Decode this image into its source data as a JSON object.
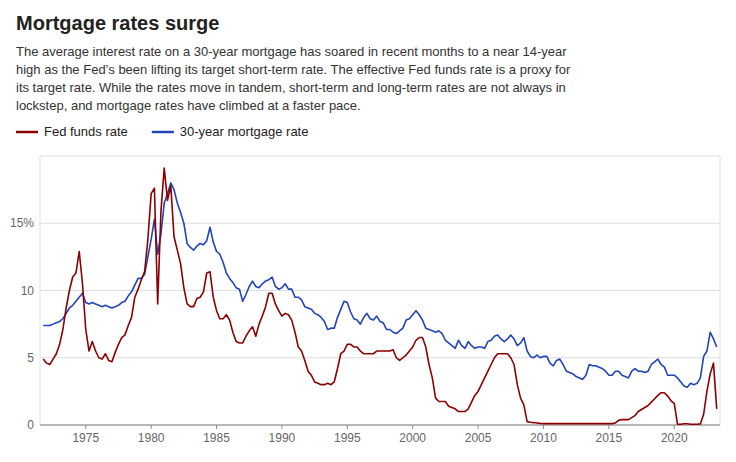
{
  "chart_data": {
    "type": "line",
    "title": "Mortgage rates surge",
    "subtitle": [
      "The average interest rate on a 30-year mortgage has soared in recent months to a near 14-year",
      "high as the Fed’s been lifting its target short-term rate. The effective Fed funds rate is a proxy for",
      "its target rate. While the rates move in tandem, short-term and long-term rates are not always in",
      "lockstep, and mortgage rates have climbed at a faster pace."
    ],
    "x": [
      1971.75,
      1972,
      1972.25,
      1972.5,
      1972.75,
      1973,
      1973.25,
      1973.5,
      1973.75,
      1974,
      1974.25,
      1974.5,
      1974.75,
      1975,
      1975.25,
      1975.5,
      1975.75,
      1976,
      1976.25,
      1976.5,
      1976.75,
      1977,
      1977.25,
      1977.5,
      1977.75,
      1978,
      1978.25,
      1978.5,
      1978.75,
      1979,
      1979.25,
      1979.5,
      1979.75,
      1980,
      1980.25,
      1980.5,
      1980.75,
      1981,
      1981.25,
      1981.5,
      1981.75,
      1982,
      1982.25,
      1982.5,
      1982.75,
      1983,
      1983.25,
      1983.5,
      1983.75,
      1984,
      1984.25,
      1984.5,
      1984.75,
      1985,
      1985.25,
      1985.5,
      1985.75,
      1986,
      1986.25,
      1986.5,
      1986.75,
      1987,
      1987.25,
      1987.5,
      1987.75,
      1988,
      1988.25,
      1988.5,
      1988.75,
      1989,
      1989.25,
      1989.5,
      1989.75,
      1990,
      1990.25,
      1990.5,
      1990.75,
      1991,
      1991.25,
      1991.5,
      1991.75,
      1992,
      1992.25,
      1992.5,
      1992.75,
      1993,
      1993.25,
      1993.5,
      1993.75,
      1994,
      1994.25,
      1994.5,
      1994.75,
      1995,
      1995.25,
      1995.5,
      1995.75,
      1996,
      1996.25,
      1996.5,
      1996.75,
      1997,
      1997.25,
      1997.5,
      1997.75,
      1998,
      1998.25,
      1998.5,
      1998.75,
      1999,
      1999.25,
      1999.5,
      1999.75,
      2000,
      2000.25,
      2000.5,
      2000.75,
      2001,
      2001.25,
      2001.5,
      2001.75,
      2002,
      2002.25,
      2002.5,
      2002.75,
      2003,
      2003.25,
      2003.5,
      2003.75,
      2004,
      2004.25,
      2004.5,
      2004.75,
      2005,
      2005.25,
      2005.5,
      2005.75,
      2006,
      2006.25,
      2006.5,
      2006.75,
      2007,
      2007.25,
      2007.5,
      2007.75,
      2008,
      2008.25,
      2008.5,
      2008.75,
      2009,
      2009.25,
      2009.5,
      2009.75,
      2010,
      2010.25,
      2010.5,
      2010.75,
      2011,
      2011.25,
      2011.5,
      2011.75,
      2012,
      2012.25,
      2012.5,
      2012.75,
      2013,
      2013.25,
      2013.5,
      2013.75,
      2014,
      2014.25,
      2014.5,
      2014.75,
      2015,
      2015.25,
      2015.5,
      2015.75,
      2016,
      2016.25,
      2016.5,
      2016.75,
      2017,
      2017.25,
      2017.5,
      2017.75,
      2018,
      2018.25,
      2018.5,
      2018.75,
      2019,
      2019.25,
      2019.5,
      2019.75,
      2020,
      2020.25,
      2020.5,
      2020.75,
      2021,
      2021.25,
      2021.5,
      2021.75,
      2022,
      2022.25,
      2022.5,
      2022.75,
      2023,
      2023.25
    ],
    "series": [
      {
        "name": "Fed funds rate",
        "color": "#8B0000",
        "values": [
          4.9,
          4.6,
          4.5,
          4.9,
          5.3,
          6.0,
          7.1,
          8.7,
          10.0,
          11.0,
          11.3,
          12.9,
          10.5,
          7.1,
          5.5,
          6.2,
          5.5,
          5.0,
          4.9,
          5.3,
          4.8,
          4.7,
          5.4,
          6.0,
          6.5,
          6.7,
          7.4,
          8.0,
          9.5,
          10.1,
          10.8,
          11.4,
          13.8,
          17.2,
          17.6,
          9.0,
          15.9,
          19.1,
          16.7,
          17.8,
          14.0,
          13.0,
          12.0,
          10.2,
          9.0,
          8.8,
          8.8,
          9.4,
          9.5,
          9.9,
          11.3,
          11.4,
          9.5,
          8.5,
          7.9,
          7.9,
          8.2,
          7.8,
          6.9,
          6.2,
          6.1,
          6.1,
          6.6,
          7.0,
          7.3,
          6.6,
          7.5,
          8.1,
          8.8,
          9.8,
          9.8,
          9.0,
          8.5,
          8.1,
          8.3,
          8.2,
          7.8,
          6.9,
          5.8,
          5.5,
          4.8,
          4.0,
          3.7,
          3.2,
          3.1,
          3.0,
          3.0,
          3.1,
          3.0,
          3.2,
          4.2,
          5.3,
          5.5,
          6.0,
          6.0,
          5.8,
          5.8,
          5.5,
          5.3,
          5.3,
          5.3,
          5.3,
          5.5,
          5.5,
          5.5,
          5.5,
          5.5,
          5.6,
          5.0,
          4.8,
          5.0,
          5.2,
          5.5,
          5.8,
          6.3,
          6.5,
          6.5,
          5.8,
          4.5,
          3.5,
          2.0,
          1.75,
          1.75,
          1.75,
          1.4,
          1.3,
          1.2,
          1.0,
          1.0,
          1.0,
          1.2,
          1.7,
          2.2,
          2.5,
          3.0,
          3.5,
          4.0,
          4.5,
          5.0,
          5.3,
          5.3,
          5.3,
          5.3,
          5.0,
          4.5,
          3.0,
          2.0,
          1.5,
          0.25,
          0.2,
          0.18,
          0.15,
          0.12,
          0.1,
          0.1,
          0.1,
          0.1,
          0.1,
          0.1,
          0.1,
          0.1,
          0.1,
          0.1,
          0.1,
          0.1,
          0.1,
          0.1,
          0.1,
          0.1,
          0.1,
          0.1,
          0.1,
          0.1,
          0.1,
          0.1,
          0.15,
          0.35,
          0.4,
          0.4,
          0.4,
          0.55,
          0.7,
          1.0,
          1.15,
          1.3,
          1.45,
          1.7,
          1.95,
          2.2,
          2.4,
          2.4,
          2.15,
          1.8,
          1.6,
          0.06,
          0.06,
          0.09,
          0.09,
          0.06,
          0.06,
          0.06,
          0.08,
          0.8,
          2.5,
          3.8,
          4.6,
          1.2
        ]
      },
      {
        "name": "30-year mortgage rate",
        "color": "#2244bb",
        "values": [
          7.4,
          7.4,
          7.4,
          7.5,
          7.6,
          7.7,
          7.9,
          8.3,
          8.7,
          8.9,
          9.2,
          9.5,
          9.8,
          9.1,
          9.0,
          9.1,
          9.0,
          8.9,
          8.8,
          8.9,
          8.8,
          8.7,
          8.8,
          8.9,
          9.1,
          9.2,
          9.6,
          9.9,
          10.4,
          10.9,
          10.9,
          11.2,
          12.5,
          13.8,
          15.3,
          12.7,
          14.2,
          16.5,
          17.2,
          18.0,
          17.5,
          16.5,
          15.8,
          15.0,
          13.5,
          13.2,
          13.0,
          13.3,
          13.5,
          13.4,
          13.7,
          14.7,
          13.6,
          12.9,
          12.7,
          12.1,
          11.3,
          10.9,
          10.6,
          10.2,
          10.1,
          9.2,
          9.7,
          10.3,
          10.7,
          10.3,
          10.2,
          10.5,
          10.7,
          10.8,
          11.0,
          10.3,
          10.1,
          10.2,
          10.5,
          10.1,
          10.1,
          9.5,
          9.5,
          9.3,
          8.8,
          8.7,
          8.6,
          8.3,
          8.2,
          8.0,
          7.7,
          7.1,
          7.2,
          7.2,
          8.0,
          8.6,
          9.2,
          9.1,
          8.4,
          7.9,
          7.8,
          7.5,
          8.0,
          8.3,
          7.9,
          7.8,
          8.1,
          7.7,
          7.6,
          7.1,
          7.1,
          6.9,
          6.8,
          7.0,
          7.2,
          7.8,
          7.9,
          8.2,
          8.5,
          8.2,
          7.8,
          7.2,
          7.1,
          7.0,
          6.9,
          7.0,
          6.8,
          6.3,
          6.1,
          5.9,
          5.7,
          6.3,
          5.9,
          5.7,
          6.2,
          5.9,
          5.7,
          5.8,
          5.8,
          5.7,
          6.2,
          6.3,
          6.6,
          6.7,
          6.4,
          6.2,
          6.4,
          6.7,
          6.4,
          5.9,
          6.1,
          6.5,
          5.5,
          5.1,
          5.0,
          5.2,
          5.0,
          5.1,
          5.1,
          4.6,
          4.4,
          4.8,
          4.9,
          4.5,
          4.0,
          3.9,
          3.8,
          3.6,
          3.5,
          3.4,
          3.7,
          4.5,
          4.4,
          4.4,
          4.3,
          4.2,
          4.0,
          3.7,
          3.7,
          4.0,
          4.0,
          3.7,
          3.6,
          3.5,
          4.0,
          4.2,
          4.0,
          4.0,
          3.9,
          4.0,
          4.5,
          4.7,
          4.9,
          4.5,
          4.3,
          3.7,
          3.7,
          3.7,
          3.5,
          3.2,
          2.9,
          2.8,
          3.1,
          3.0,
          3.1,
          3.5,
          5.1,
          5.5,
          6.9,
          6.4,
          5.8
        ]
      }
    ],
    "xlim": [
      1971.5,
      2023.5
    ],
    "xticks": [
      1975,
      1980,
      1985,
      1990,
      1995,
      2000,
      2005,
      2010,
      2015,
      2020
    ],
    "ylim": [
      0,
      20
    ],
    "yticks": [
      0,
      5,
      10,
      {
        "value": 15,
        "label": "15%"
      }
    ],
    "grid": true
  }
}
